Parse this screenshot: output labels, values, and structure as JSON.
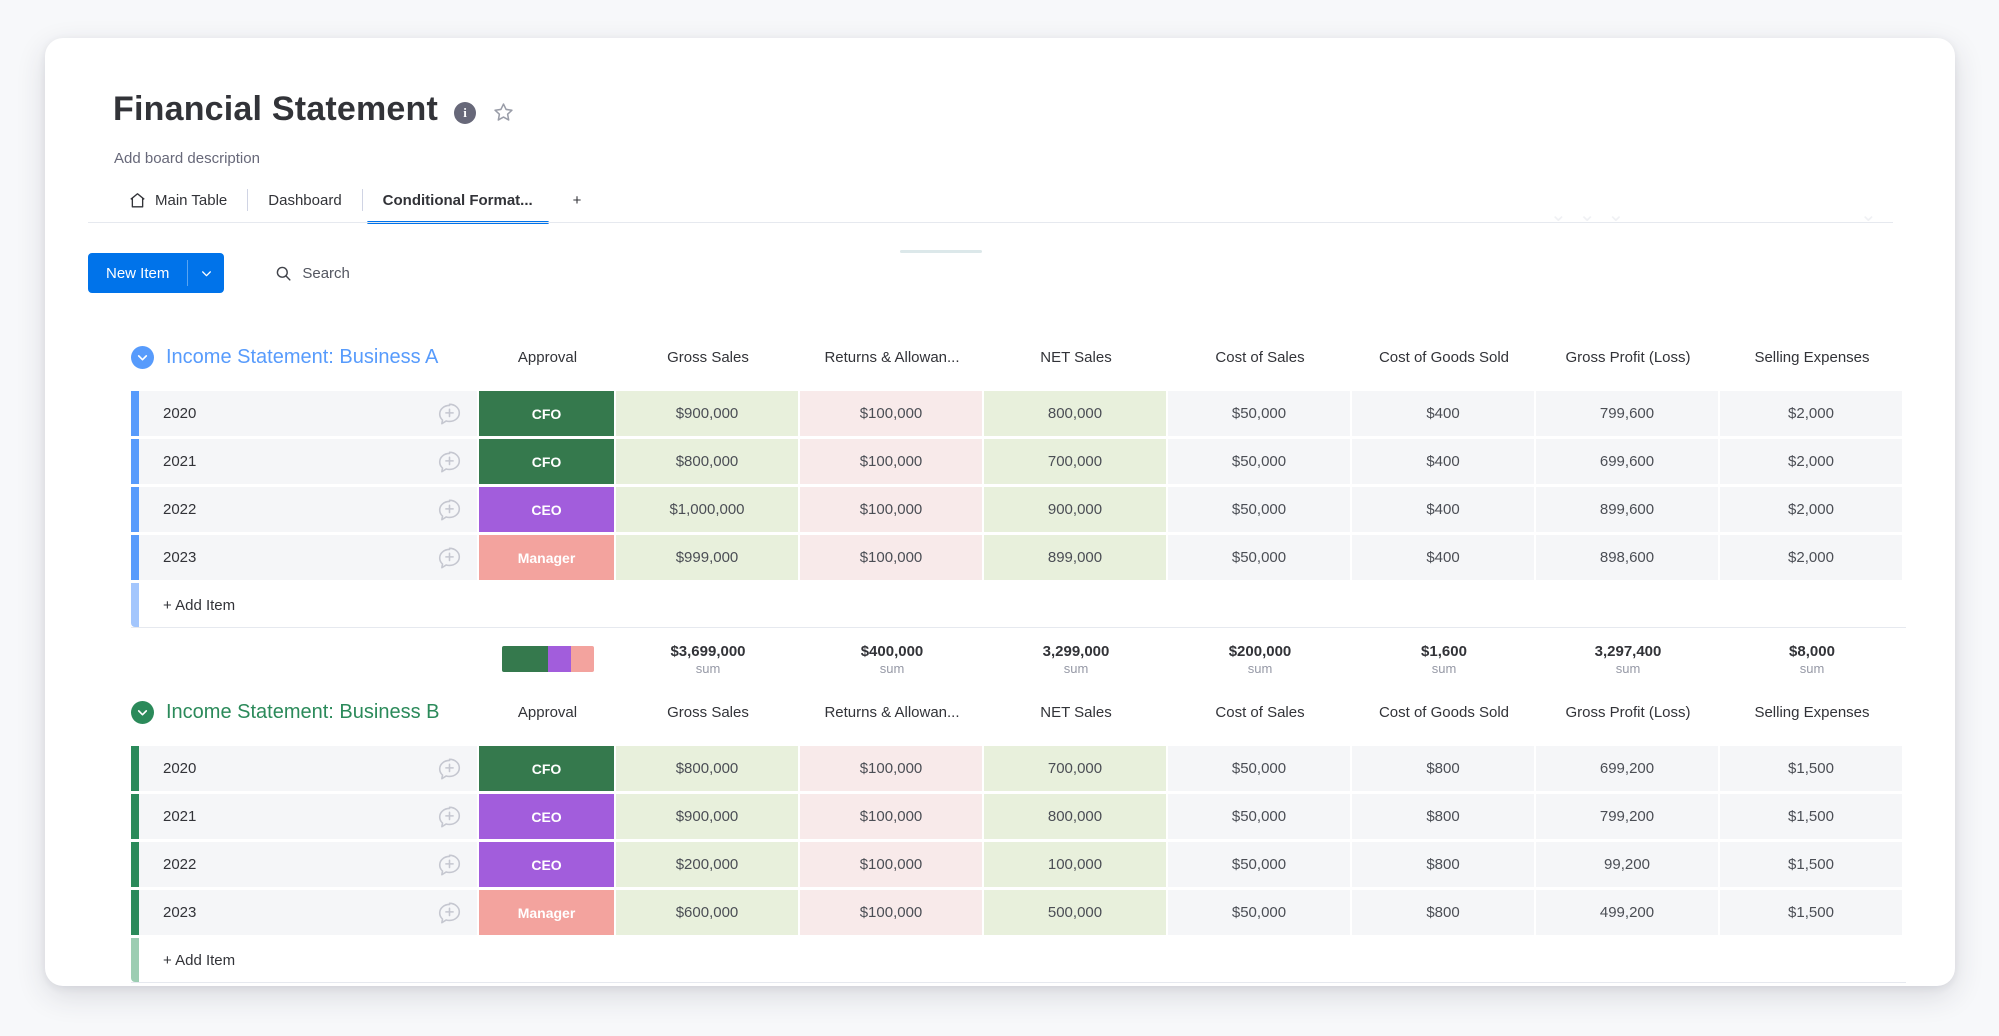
{
  "board": {
    "title": "Financial Statement",
    "description_placeholder": "Add board description",
    "tabs": [
      {
        "label": "Main Table",
        "active": false,
        "icon": "home-icon"
      },
      {
        "label": "Dashboard",
        "active": false
      },
      {
        "label": "Conditional Format...",
        "active": true
      },
      {
        "label": "+",
        "active": false
      }
    ],
    "toolbar": {
      "new_item_label": "New Item",
      "search_placeholder": "Search"
    }
  },
  "labels": {
    "sum": "sum",
    "add_item": "+ Add Item"
  },
  "columns": [
    "Approval",
    "Gross Sales",
    "Returns & Allowan...",
    "NET Sales",
    "Cost of Sales",
    "Cost of Goods Sold",
    "Gross Profit (Loss)",
    "Selling Expenses"
  ],
  "column_tints": [
    "badge",
    "green",
    "pink",
    "green",
    "plain",
    "plain",
    "plain",
    "plain"
  ],
  "approval_colors": {
    "CFO": "#35794d",
    "CEO": "#a25ddc",
    "Manager": "#f3a39e"
  },
  "colors": {
    "accent_blue": "#0073ea",
    "cell_green": "#e8f0dc",
    "cell_pink": "#f8eaea",
    "cell_neutral": "#f5f6f8"
  },
  "groups": [
    {
      "name": "Income Statement: Business A",
      "color": "#579bfc",
      "bar_color": "#579bfc",
      "add_bar_color": "#a3c6fd",
      "rows": [
        {
          "name": "2020",
          "approval": "CFO",
          "values": [
            "$900,000",
            "$100,000",
            "800,000",
            "$50,000",
            "$400",
            "799,600",
            "$2,000"
          ]
        },
        {
          "name": "2021",
          "approval": "CFO",
          "values": [
            "$800,000",
            "$100,000",
            "700,000",
            "$50,000",
            "$400",
            "699,600",
            "$2,000"
          ]
        },
        {
          "name": "2022",
          "approval": "CEO",
          "values": [
            "$1,000,000",
            "$100,000",
            "900,000",
            "$50,000",
            "$400",
            "899,600",
            "$2,000"
          ]
        },
        {
          "name": "2023",
          "approval": "Manager",
          "values": [
            "$999,000",
            "$100,000",
            "899,000",
            "$50,000",
            "$400",
            "898,600",
            "$2,000"
          ]
        }
      ],
      "summary": {
        "distribution": [
          {
            "color": "#35794d",
            "pct": 50
          },
          {
            "color": "#a25ddc",
            "pct": 25
          },
          {
            "color": "#f3a39e",
            "pct": 25
          }
        ],
        "values": [
          "$3,699,000",
          "$400,000",
          "3,299,000",
          "$200,000",
          "$1,600",
          "3,297,400",
          "$8,000"
        ]
      }
    },
    {
      "name": "Income Statement: Business B",
      "color": "#2b8a5a",
      "bar_color": "#2b8a5a",
      "add_bar_color": "#9ccdb2",
      "rows": [
        {
          "name": "2020",
          "approval": "CFO",
          "values": [
            "$800,000",
            "$100,000",
            "700,000",
            "$50,000",
            "$800",
            "699,200",
            "$1,500"
          ]
        },
        {
          "name": "2021",
          "approval": "CEO",
          "values": [
            "$900,000",
            "$100,000",
            "800,000",
            "$50,000",
            "$800",
            "799,200",
            "$1,500"
          ]
        },
        {
          "name": "2022",
          "approval": "CEO",
          "values": [
            "$200,000",
            "$100,000",
            "100,000",
            "$50,000",
            "$800",
            "99,200",
            "$1,500"
          ]
        },
        {
          "name": "2023",
          "approval": "Manager",
          "values": [
            "$600,000",
            "$100,000",
            "500,000",
            "$50,000",
            "$800",
            "499,200",
            "$1,500"
          ]
        }
      ],
      "summary": null
    }
  ]
}
